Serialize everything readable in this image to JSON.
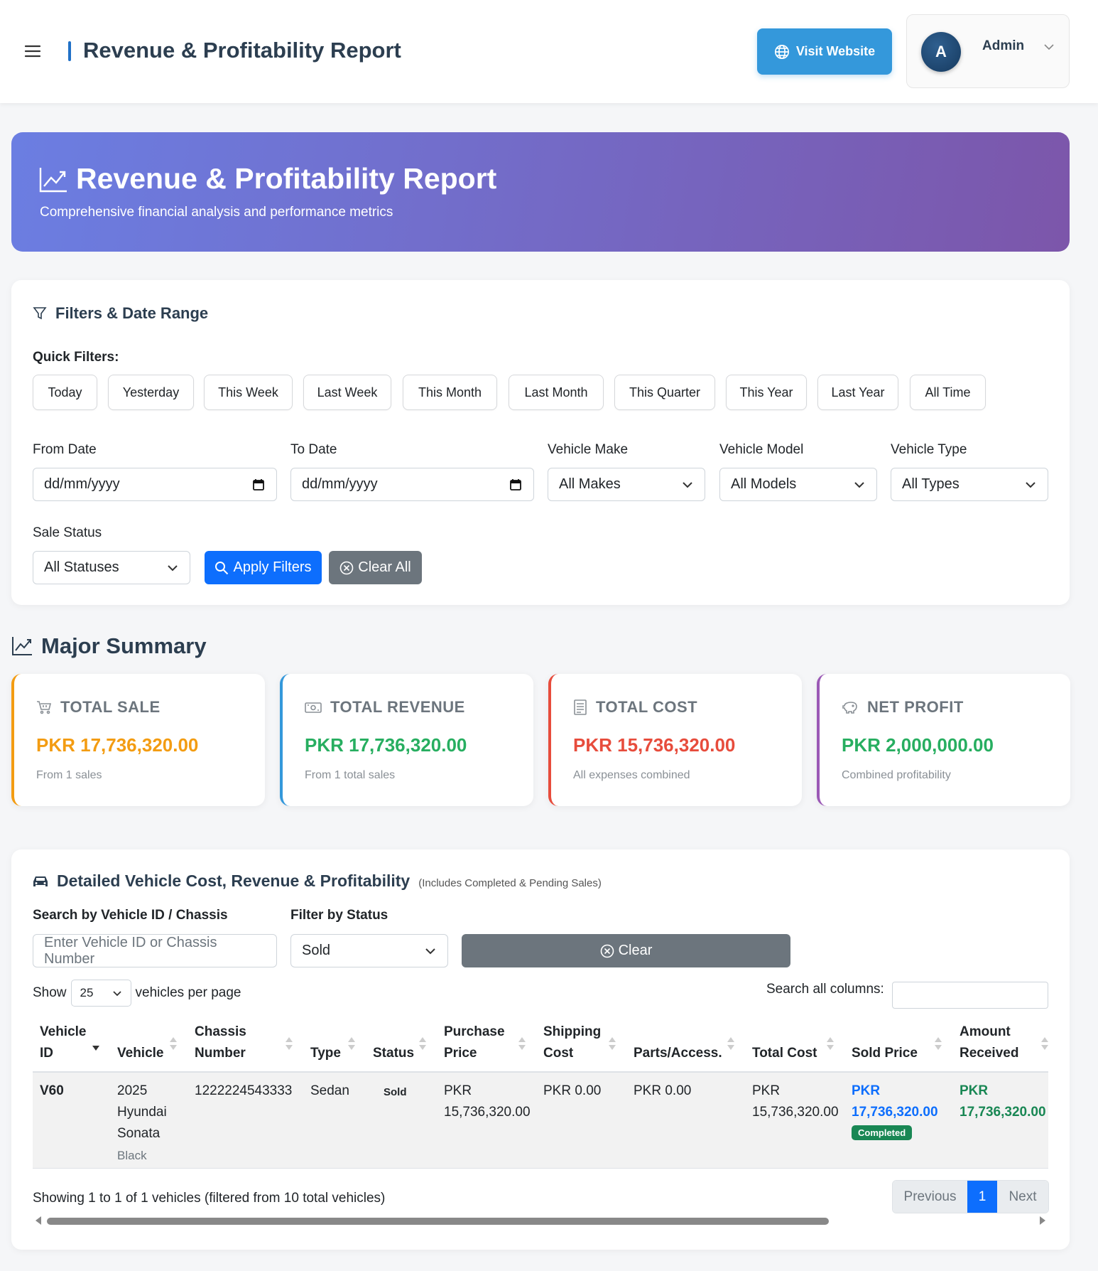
{
  "header": {
    "title": "Revenue & Profitability Report",
    "visit_label": "Visit Website",
    "user_initial": "A",
    "user_name": "Admin"
  },
  "hero": {
    "title": "Revenue & Profitability Report",
    "subtitle": "Comprehensive financial analysis and performance metrics"
  },
  "filters": {
    "title": "Filters & Date Range",
    "quick_label": "Quick Filters:",
    "quick": [
      "Today",
      "Yesterday",
      "This Week",
      "Last Week",
      "This Month",
      "Last Month",
      "This Quarter",
      "This Year",
      "Last Year",
      "All Time"
    ],
    "from_label": "From Date",
    "from_placeholder": "dd/mm/yyyy",
    "to_label": "To Date",
    "to_placeholder": "dd/mm/yyyy",
    "make_label": "Vehicle Make",
    "make_value": "All Makes",
    "model_label": "Vehicle Model",
    "model_value": "All Models",
    "type_label": "Vehicle Type",
    "type_value": "All Types",
    "status_label": "Sale Status",
    "status_value": "All Statuses",
    "apply_label": "Apply Filters",
    "clear_label": "Clear All"
  },
  "summary": {
    "title": "Major Summary",
    "cards": [
      {
        "label": "TOTAL SALE",
        "value": "PKR 17,736,320.00",
        "note": "From 1 sales",
        "color": "#f39c12"
      },
      {
        "label": "TOTAL REVENUE",
        "value": "PKR 17,736,320.00",
        "note": "From 1 total sales",
        "color": "#27ae60"
      },
      {
        "label": "TOTAL COST",
        "value": "PKR 15,736,320.00",
        "note": "All expenses combined",
        "color": "#e74c3c"
      },
      {
        "label": "NET PROFIT",
        "value": "PKR 2,000,000.00",
        "note": "Combined profitability",
        "color": "#27ae60"
      }
    ],
    "border_colors": [
      "#f39c12",
      "#3498db",
      "#e74c3c",
      "#9b59b6"
    ]
  },
  "detail": {
    "title": "Detailed Vehicle Cost, Revenue & Profitability",
    "subtitle": "(Includes Completed & Pending Sales)",
    "search_label": "Search by Vehicle ID / Chassis",
    "search_placeholder": "Enter Vehicle ID or Chassis Number",
    "status_label": "Filter by Status",
    "status_value": "Sold",
    "clear_label": "Clear",
    "show_label": "Show",
    "per_page_value": "25",
    "per_page_suffix": "vehicles per page",
    "search_all_label": "Search all columns:",
    "columns": {
      "vehicle_id_1": "Vehicle",
      "vehicle_id_2": "ID",
      "vehicle": "Vehicle",
      "chassis_1": "Chassis",
      "chassis_2": "Number",
      "type": "Type",
      "status": "Status",
      "purchase_1": "Purchase",
      "purchase_2": "Price",
      "shipping_1": "Shipping",
      "shipping_2": "Cost",
      "parts": "Parts/Access.",
      "total_cost": "Total Cost",
      "sold_price": "Sold Price",
      "amount_1": "Amount",
      "amount_2": "Received"
    },
    "row": {
      "vehicle_id": "V60",
      "vehicle_l1": "2025",
      "vehicle_l2": "Hyundai",
      "vehicle_l3": "Sonata",
      "color": "Black",
      "chassis": "1222224543333",
      "type": "Sedan",
      "status": "Sold",
      "purchase_l1": "PKR",
      "purchase_l2": "15,736,320.00",
      "shipping": "PKR 0.00",
      "parts": "PKR 0.00",
      "total_l1": "PKR",
      "total_l2": "15,736,320.00",
      "sold_l1": "PKR",
      "sold_l2": "17,736,320.00",
      "sold_badge": "Completed",
      "amount_l1": "PKR",
      "amount_l2": "17,736,320.00"
    },
    "info": "Showing 1 to 1 of 1 vehicles (filtered from 10 total vehicles)",
    "pager": {
      "prev": "Previous",
      "page": "1",
      "next": "Next"
    }
  }
}
